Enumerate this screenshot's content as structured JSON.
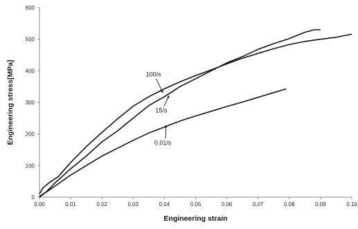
{
  "chart_data": {
    "type": "line",
    "title": "",
    "xlabel": "Engineering strain",
    "ylabel": "Engineering stress[MPa]",
    "xlim": [
      0,
      0.1
    ],
    "ylim": [
      0,
      600
    ],
    "x_ticks": [
      "0.00",
      "0.01",
      "0.02",
      "0.03",
      "0.04",
      "0.05",
      "0.06",
      "0.07",
      "0.08",
      "0.09",
      "0.10"
    ],
    "y_ticks": [
      "0",
      "100",
      "200",
      "300",
      "400",
      "500",
      "600"
    ],
    "grid": false,
    "legend": "none",
    "line_color": "#111111",
    "series": [
      {
        "name": "100/s",
        "x": [
          0,
          0.001,
          0.003,
          0.006,
          0.01,
          0.015,
          0.02,
          0.025,
          0.03,
          0.035,
          0.04,
          0.045,
          0.05,
          0.055,
          0.06,
          0.065,
          0.07,
          0.075,
          0.08,
          0.085,
          0.09,
          0.095,
          0.1
        ],
        "y": [
          10,
          28,
          45,
          65,
          110,
          160,
          205,
          248,
          288,
          318,
          343,
          365,
          385,
          403,
          422,
          440,
          455,
          470,
          483,
          493,
          500,
          506,
          516
        ]
      },
      {
        "name": "15/s",
        "x": [
          0,
          0.002,
          0.005,
          0.01,
          0.015,
          0.02,
          0.025,
          0.03,
          0.035,
          0.04,
          0.045,
          0.05,
          0.055,
          0.06,
          0.065,
          0.07,
          0.075,
          0.08,
          0.085,
          0.088,
          0.09
        ],
        "y": [
          0,
          15,
          45,
          90,
          130,
          175,
          210,
          250,
          290,
          318,
          350,
          375,
          400,
          425,
          445,
          468,
          486,
          502,
          522,
          530,
          530
        ]
      },
      {
        "name": "0.01/s",
        "x": [
          0,
          0.002,
          0.005,
          0.01,
          0.015,
          0.02,
          0.025,
          0.03,
          0.035,
          0.04,
          0.045,
          0.05,
          0.055,
          0.06,
          0.065,
          0.07,
          0.075,
          0.079
        ],
        "y": [
          2,
          15,
          35,
          70,
          100,
          130,
          155,
          180,
          203,
          222,
          241,
          257,
          272,
          287,
          301,
          316,
          331,
          343
        ]
      }
    ],
    "annotations": [
      {
        "text": "100/s",
        "x": 0.0365,
        "y": 382,
        "arrow_to": [
          0.0395,
          330
        ]
      },
      {
        "text": "15/s",
        "x": 0.039,
        "y": 268,
        "arrow_to": [
          0.0415,
          322
        ]
      },
      {
        "text": "0.01/s",
        "x": 0.0395,
        "y": 165,
        "arrow_to": [
          0.0405,
          228
        ]
      }
    ]
  }
}
